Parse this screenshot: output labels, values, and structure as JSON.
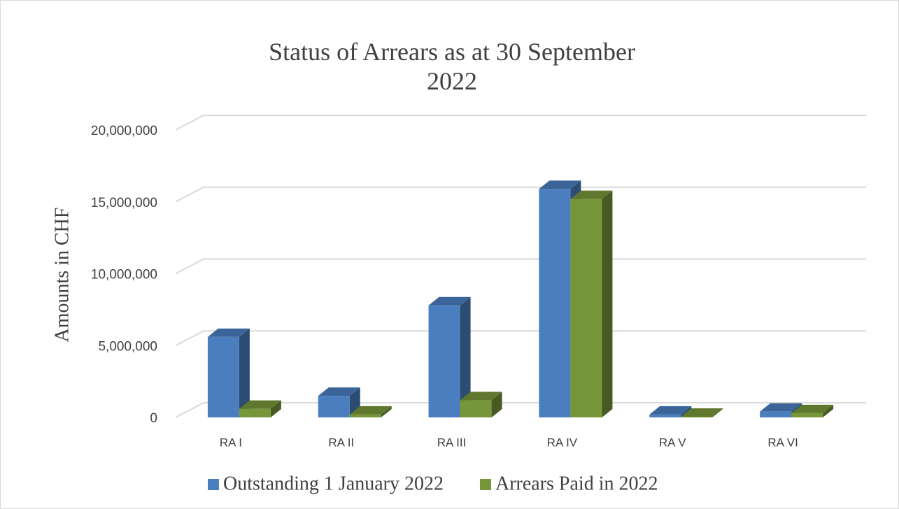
{
  "chart_data": {
    "type": "bar3d",
    "title": "Status of Arrears as at 30 September 2022",
    "y_label": "Amounts in CHF",
    "categories": [
      "RA I",
      "RA II",
      "RA III",
      "RA IV",
      "RA V",
      "RA VI"
    ],
    "series": [
      {
        "name": "Outstanding 1 January 2022",
        "color": "#4a7ebf",
        "values": [
          5600000,
          1500000,
          7800000,
          15900000,
          200000,
          400000
        ]
      },
      {
        "name": "Arrears Paid in 2022",
        "color": "#77963a",
        "values": [
          600000,
          200000,
          1200000,
          15200000,
          50000,
          300000
        ]
      }
    ],
    "ylim": [
      0,
      20000000
    ],
    "yticks": [
      0,
      {
        "value": 5000000,
        "label": "5,000,000"
      },
      {
        "value": 10000000,
        "label": "10,000,000"
      },
      {
        "value": 15000000,
        "label": "15,000,000"
      },
      {
        "value": 20000000,
        "label": "20,000,000"
      }
    ],
    "grid": true,
    "legend": "bottom"
  }
}
